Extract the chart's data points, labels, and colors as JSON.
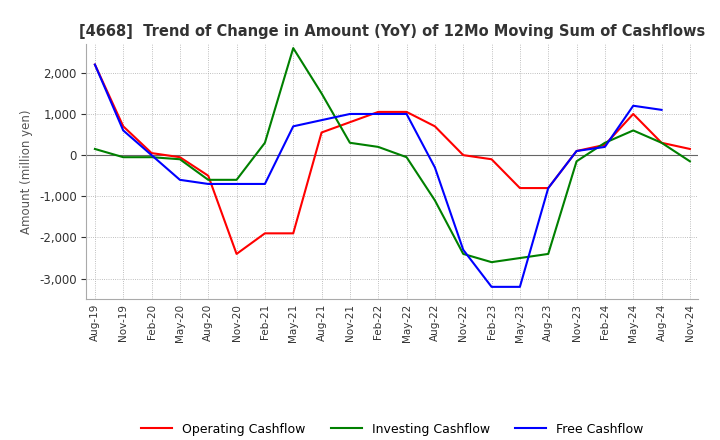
{
  "title": "[4668]  Trend of Change in Amount (YoY) of 12Mo Moving Sum of Cashflows",
  "ylabel": "Amount (million yen)",
  "xlabels": [
    "Aug-19",
    "Nov-19",
    "Feb-20",
    "May-20",
    "Aug-20",
    "Nov-20",
    "Feb-21",
    "May-21",
    "Aug-21",
    "Nov-21",
    "Feb-22",
    "May-22",
    "Aug-22",
    "Nov-22",
    "Feb-23",
    "May-23",
    "Aug-23",
    "Nov-23",
    "Feb-24",
    "May-24",
    "Aug-24",
    "Nov-24"
  ],
  "operating": [
    2200,
    700,
    50,
    -50,
    -500,
    -2400,
    -1900,
    -1900,
    550,
    800,
    1050,
    1050,
    700,
    0,
    -100,
    -800,
    -800,
    100,
    250,
    1000,
    300,
    150
  ],
  "investing": [
    150,
    -50,
    -50,
    -100,
    -600,
    -600,
    300,
    2600,
    1500,
    300,
    200,
    -50,
    -1100,
    -2400,
    -2600,
    -2500,
    -2400,
    -150,
    300,
    600,
    300,
    -150
  ],
  "free": [
    2200,
    600,
    0,
    -600,
    -700,
    -700,
    -700,
    700,
    850,
    1000,
    1000,
    1000,
    -300,
    -2300,
    -3200,
    -3200,
    -800,
    100,
    200,
    1200,
    1100,
    null
  ],
  "ylim": [
    -3500,
    2700
  ],
  "yticks": [
    -3000,
    -2000,
    -1000,
    0,
    1000,
    2000
  ],
  "operating_color": "#ff0000",
  "investing_color": "#008000",
  "free_color": "#0000ff",
  "grid_color": "#aaaaaa",
  "title_color": "#333333",
  "background_color": "#ffffff"
}
